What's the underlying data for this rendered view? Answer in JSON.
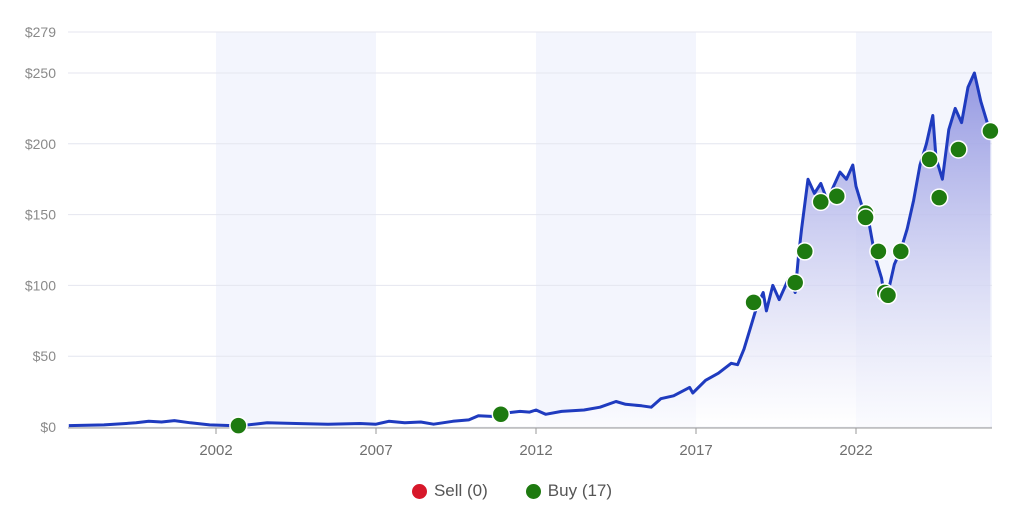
{
  "chart_data": {
    "type": "line",
    "title": "",
    "xlabel": "",
    "ylabel": "",
    "ylim": [
      0,
      279
    ],
    "y_ticks": [
      {
        "value": 0,
        "label": "$0"
      },
      {
        "value": 50,
        "label": "$50"
      },
      {
        "value": 100,
        "label": "$100"
      },
      {
        "value": 150,
        "label": "$150"
      },
      {
        "value": 200,
        "label": "$200"
      },
      {
        "value": 250,
        "label": "$250"
      },
      {
        "value": 279,
        "label": "$279"
      }
    ],
    "x_ticks": [
      {
        "value": 2002,
        "label": "2002"
      },
      {
        "value": 2007,
        "label": "2007"
      },
      {
        "value": 2012,
        "label": "2012"
      },
      {
        "value": 2017,
        "label": "2017"
      },
      {
        "value": 2022,
        "label": "2022"
      }
    ],
    "xlim": [
      1997.4,
      2026.3
    ],
    "grid": true,
    "shaded_bands": [
      [
        2002,
        2007
      ],
      [
        2012,
        2017
      ],
      [
        2022,
        2026.3
      ]
    ],
    "series": [
      {
        "name": "Price",
        "color": "#1f3bbf",
        "points": [
          [
            1997.4,
            1
          ],
          [
            1998.5,
            1.5
          ],
          [
            1999.5,
            3
          ],
          [
            1999.9,
            4
          ],
          [
            2000.3,
            3.5
          ],
          [
            2000.7,
            4.5
          ],
          [
            2001.2,
            3
          ],
          [
            2001.8,
            1.5
          ],
          [
            2002.5,
            1
          ],
          [
            2003.0,
            1.5
          ],
          [
            2003.6,
            3
          ],
          [
            2004.5,
            2.5
          ],
          [
            2005.5,
            2
          ],
          [
            2006.5,
            2.5
          ],
          [
            2007.0,
            2
          ],
          [
            2007.4,
            4
          ],
          [
            2007.9,
            3
          ],
          [
            2008.4,
            3.5
          ],
          [
            2008.8,
            2
          ],
          [
            2009.4,
            4
          ],
          [
            2009.9,
            5
          ],
          [
            2010.2,
            8
          ],
          [
            2010.6,
            7.5
          ],
          [
            2011.1,
            10
          ],
          [
            2011.5,
            11
          ],
          [
            2011.8,
            10.5
          ],
          [
            2012.0,
            12
          ],
          [
            2012.3,
            9
          ],
          [
            2012.8,
            11
          ],
          [
            2013.5,
            12
          ],
          [
            2014.0,
            14
          ],
          [
            2014.5,
            18
          ],
          [
            2014.8,
            16
          ],
          [
            2015.3,
            15
          ],
          [
            2015.6,
            14
          ],
          [
            2015.9,
            20
          ],
          [
            2016.3,
            22
          ],
          [
            2016.8,
            28
          ],
          [
            2016.9,
            24
          ],
          [
            2017.3,
            33
          ],
          [
            2017.7,
            38
          ],
          [
            2018.1,
            45
          ],
          [
            2018.3,
            44
          ],
          [
            2018.5,
            55
          ],
          [
            2018.7,
            70
          ],
          [
            2018.9,
            85
          ],
          [
            2019.1,
            95
          ],
          [
            2019.2,
            82
          ],
          [
            2019.4,
            100
          ],
          [
            2019.6,
            90
          ],
          [
            2019.9,
            105
          ],
          [
            2020.1,
            95
          ],
          [
            2020.2,
            120
          ],
          [
            2020.3,
            140
          ],
          [
            2020.5,
            175
          ],
          [
            2020.7,
            165
          ],
          [
            2020.9,
            172
          ],
          [
            2021.1,
            160
          ],
          [
            2021.3,
            170
          ],
          [
            2021.5,
            180
          ],
          [
            2021.7,
            175
          ],
          [
            2021.9,
            185
          ],
          [
            2022.0,
            170
          ],
          [
            2022.2,
            155
          ],
          [
            2022.4,
            145
          ],
          [
            2022.6,
            120
          ],
          [
            2022.8,
            105
          ],
          [
            2022.9,
            90
          ],
          [
            2023.0,
            95
          ],
          [
            2023.2,
            115
          ],
          [
            2023.4,
            125
          ],
          [
            2023.6,
            140
          ],
          [
            2023.8,
            160
          ],
          [
            2024.0,
            185
          ],
          [
            2024.2,
            200
          ],
          [
            2024.4,
            220
          ],
          [
            2024.5,
            190
          ],
          [
            2024.7,
            175
          ],
          [
            2024.9,
            210
          ],
          [
            2025.1,
            225
          ],
          [
            2025.3,
            215
          ],
          [
            2025.5,
            240
          ],
          [
            2025.7,
            250
          ],
          [
            2025.9,
            230
          ],
          [
            2026.1,
            215
          ],
          [
            2026.2,
            212
          ]
        ]
      }
    ],
    "markers": [
      {
        "type": "Buy",
        "year": 2002.7,
        "price": 1
      },
      {
        "type": "Buy",
        "year": 2010.9,
        "price": 9
      },
      {
        "type": "Buy",
        "year": 2018.8,
        "price": 88
      },
      {
        "type": "Buy",
        "year": 2020.1,
        "price": 102
      },
      {
        "type": "Buy",
        "year": 2020.4,
        "price": 124
      },
      {
        "type": "Buy",
        "year": 2020.9,
        "price": 159
      },
      {
        "type": "Buy",
        "year": 2021.4,
        "price": 163
      },
      {
        "type": "Buy",
        "year": 2022.3,
        "price": 151
      },
      {
        "type": "Buy",
        "year": 2022.3,
        "price": 148
      },
      {
        "type": "Buy",
        "year": 2022.7,
        "price": 124
      },
      {
        "type": "Buy",
        "year": 2022.9,
        "price": 95
      },
      {
        "type": "Buy",
        "year": 2023.0,
        "price": 93
      },
      {
        "type": "Buy",
        "year": 2023.4,
        "price": 124
      },
      {
        "type": "Buy",
        "year": 2024.3,
        "price": 189
      },
      {
        "type": "Buy",
        "year": 2024.6,
        "price": 162
      },
      {
        "type": "Buy",
        "year": 2025.2,
        "price": 196
      },
      {
        "type": "Buy",
        "year": 2026.2,
        "price": 209
      }
    ],
    "legend": [
      {
        "label": "Sell (0)",
        "color": "#d7182a"
      },
      {
        "label": "Buy (17)",
        "color": "#1e7a10"
      }
    ],
    "legend_position": "bottom"
  },
  "colors": {
    "line": "#1f3bbf",
    "fill_top": "#8f93e0",
    "fill_bottom": "#ffffff",
    "band": "#f3f5fd",
    "grid": "#e4e6ef",
    "buy": "#1e7a10",
    "sell": "#d7182a"
  },
  "legend": {
    "sell_label": "Sell (0)",
    "buy_label": "Buy (17)"
  }
}
